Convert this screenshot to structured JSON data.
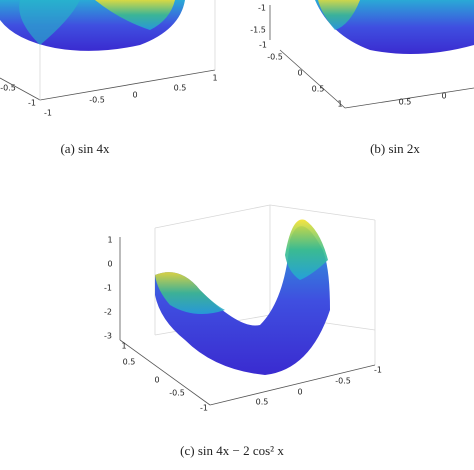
{
  "panels": [
    {
      "caption": "(a) sin 4x",
      "ticks": [
        "-0.5",
        "-1",
        "-1",
        "-0.5",
        "0",
        "0.5",
        "1"
      ]
    },
    {
      "caption": "(b) sin 2x",
      "ticks": [
        "-1",
        "-1.5",
        "-1",
        "-0.5",
        "0",
        "0.5",
        "1",
        "0.5",
        "0"
      ]
    },
    {
      "caption": "(c) sin 4x − 2 cos² x",
      "ticks": [
        "1",
        "0",
        "-1",
        "-2",
        "-3",
        "1",
        "0.5",
        "0",
        "-0.5",
        "-1",
        "-1",
        "-0.5",
        "0",
        "0.5"
      ]
    }
  ]
}
